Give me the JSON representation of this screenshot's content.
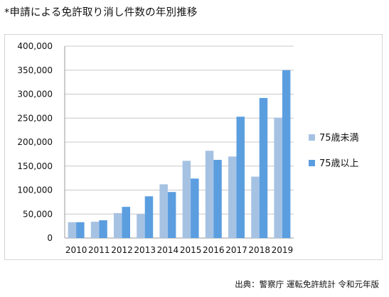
{
  "page": {
    "title": "*申請による免許取り消し件数の年別推移",
    "source": "出典：警察庁 運転免許統計 令和元年版"
  },
  "chart_data": {
    "type": "bar",
    "categories": [
      "2010",
      "2011",
      "2012",
      "2013",
      "2014",
      "2015",
      "2016",
      "2017",
      "2018",
      "2019"
    ],
    "series": [
      {
        "name": "75歳未満",
        "color": "#a6c2e3",
        "values": [
          33000,
          34000,
          52000,
          50000,
          112000,
          161000,
          182000,
          170000,
          128000,
          251000
        ]
      },
      {
        "name": "75歳以上",
        "color": "#5b9ee0",
        "values": [
          33000,
          37000,
          65000,
          87000,
          96000,
          124000,
          163000,
          253000,
          292000,
          350000
        ]
      }
    ],
    "yticks": [
      "0",
      "50,000",
      "100,000",
      "150,000",
      "200,000",
      "250,000",
      "300,000",
      "350,000",
      "400,000"
    ],
    "ylim": [
      0,
      400000
    ],
    "grid": true,
    "legend": "right"
  }
}
